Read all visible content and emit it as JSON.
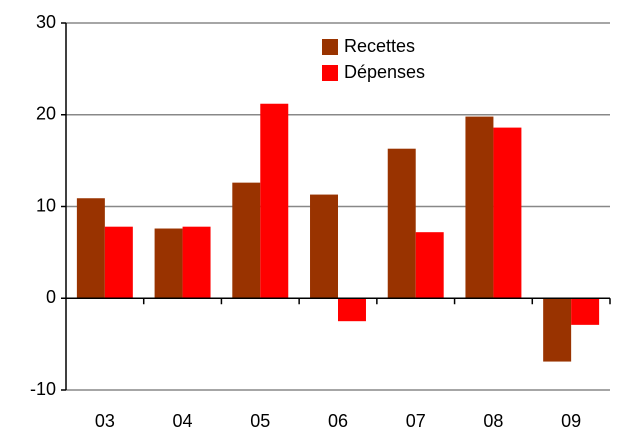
{
  "chart_data": {
    "type": "bar",
    "categories": [
      "03",
      "04",
      "05",
      "06",
      "07",
      "08",
      "09"
    ],
    "series": [
      {
        "name": "Recettes",
        "color": "#993300",
        "values": [
          10.9,
          7.6,
          12.6,
          11.3,
          16.3,
          19.8,
          -6.9
        ]
      },
      {
        "name": "Dépenses",
        "color": "#ff0000",
        "values": [
          7.8,
          7.8,
          21.2,
          -2.5,
          7.2,
          18.6,
          -2.9
        ]
      }
    ],
    "ylim": [
      -10,
      30
    ],
    "yticks": [
      -10,
      0,
      10,
      20,
      30
    ],
    "grid": true
  }
}
